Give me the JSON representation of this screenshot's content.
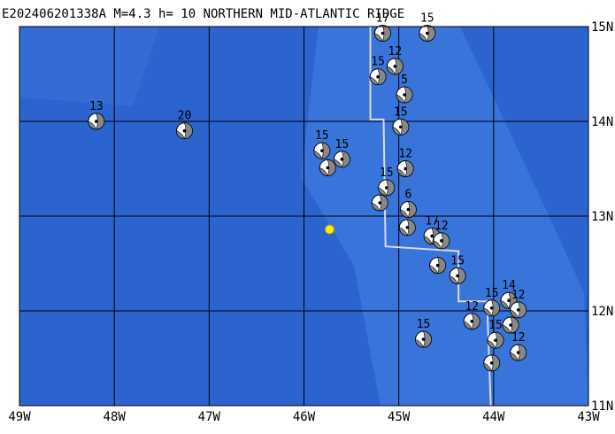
{
  "title": "E202406201338A M=4.3 h= 10 NORTHERN MID-ATLANTIC RIDGE",
  "map": {
    "xlim": [
      -49,
      -43
    ],
    "ylim": [
      11,
      15
    ],
    "xticks": [
      {
        "value": -49,
        "label": "49W"
      },
      {
        "value": -48,
        "label": "48W"
      },
      {
        "value": -47,
        "label": "47W"
      },
      {
        "value": -46,
        "label": "46W"
      },
      {
        "value": -45,
        "label": "45W"
      },
      {
        "value": -44,
        "label": "44W"
      },
      {
        "value": -43,
        "label": "43W"
      }
    ],
    "yticks": [
      {
        "value": 11,
        "label": "11N"
      },
      {
        "value": 12,
        "label": "12N"
      },
      {
        "value": 13,
        "label": "13N"
      },
      {
        "value": 14,
        "label": "14N"
      },
      {
        "value": 15,
        "label": "15N"
      }
    ],
    "ridge": {
      "lon": [
        -45.3,
        -45.3,
        -45.16,
        -45.14,
        -44.37,
        -44.37,
        -44.07,
        -44.03
      ],
      "lat": [
        15,
        14.02,
        14.02,
        12.68,
        12.63,
        12.1,
        12.1,
        11
      ]
    },
    "epicenter": {
      "lon": -45.73,
      "lat": 12.86
    },
    "events": [
      {
        "lon": -48.19,
        "lat": 14.0,
        "label": "13"
      },
      {
        "lon": -47.26,
        "lat": 13.9,
        "label": "20"
      },
      {
        "lon": -45.81,
        "lat": 13.69,
        "label": "15"
      },
      {
        "lon": -45.6,
        "lat": 13.6,
        "label": "15"
      },
      {
        "lon": -45.75,
        "lat": 13.51
      },
      {
        "lon": -45.17,
        "lat": 14.93,
        "label": "17"
      },
      {
        "lon": -44.7,
        "lat": 14.93,
        "label": "15"
      },
      {
        "lon": -45.22,
        "lat": 14.47,
        "label": "15"
      },
      {
        "lon": -45.04,
        "lat": 14.58,
        "label": "12"
      },
      {
        "lon": -44.94,
        "lat": 14.28,
        "label": "5"
      },
      {
        "lon": -44.98,
        "lat": 13.94,
        "label": "15"
      },
      {
        "lon": -44.93,
        "lat": 13.5,
        "label": "12"
      },
      {
        "lon": -45.13,
        "lat": 13.3,
        "label": "15"
      },
      {
        "lon": -45.2,
        "lat": 13.14
      },
      {
        "lon": -44.9,
        "lat": 13.07,
        "label": "6"
      },
      {
        "lon": -44.91,
        "lat": 12.88
      },
      {
        "lon": -44.65,
        "lat": 12.79,
        "label": "17"
      },
      {
        "lon": -44.55,
        "lat": 12.74,
        "label": "12"
      },
      {
        "lon": -44.59,
        "lat": 12.48
      },
      {
        "lon": -44.38,
        "lat": 12.37,
        "label": "15"
      },
      {
        "lon": -44.23,
        "lat": 11.89,
        "label": "12"
      },
      {
        "lon": -44.02,
        "lat": 12.03,
        "label": "15"
      },
      {
        "lon": -43.84,
        "lat": 12.11,
        "label": "14"
      },
      {
        "lon": -43.74,
        "lat": 12.01,
        "label": "12"
      },
      {
        "lon": -43.82,
        "lat": 11.85
      },
      {
        "lon": -43.98,
        "lat": 11.69,
        "label": "15"
      },
      {
        "lon": -44.02,
        "lat": 11.45
      },
      {
        "lon": -43.74,
        "lat": 11.56,
        "label": "12"
      },
      {
        "lon": -44.74,
        "lat": 11.7,
        "label": "15"
      }
    ]
  }
}
